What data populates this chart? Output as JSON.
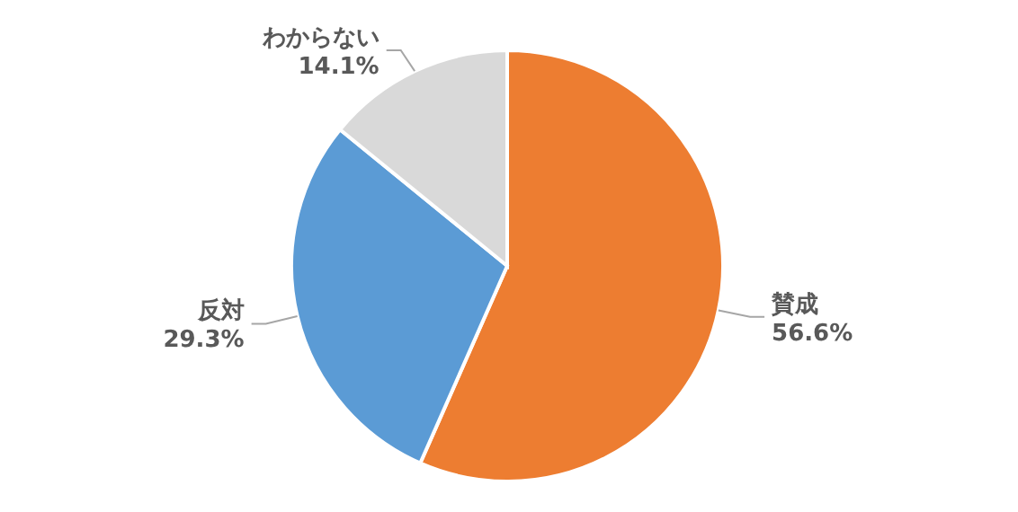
{
  "chart_data": {
    "type": "pie",
    "categories": [
      "賛成",
      "反対",
      "わからない"
    ],
    "values": [
      56.6,
      29.3,
      14.1
    ],
    "colors": [
      "#ed7d31",
      "#5b9bd5",
      "#d9d9d9"
    ],
    "value_labels": [
      "56.6%",
      "29.3%",
      "14.1%"
    ]
  }
}
